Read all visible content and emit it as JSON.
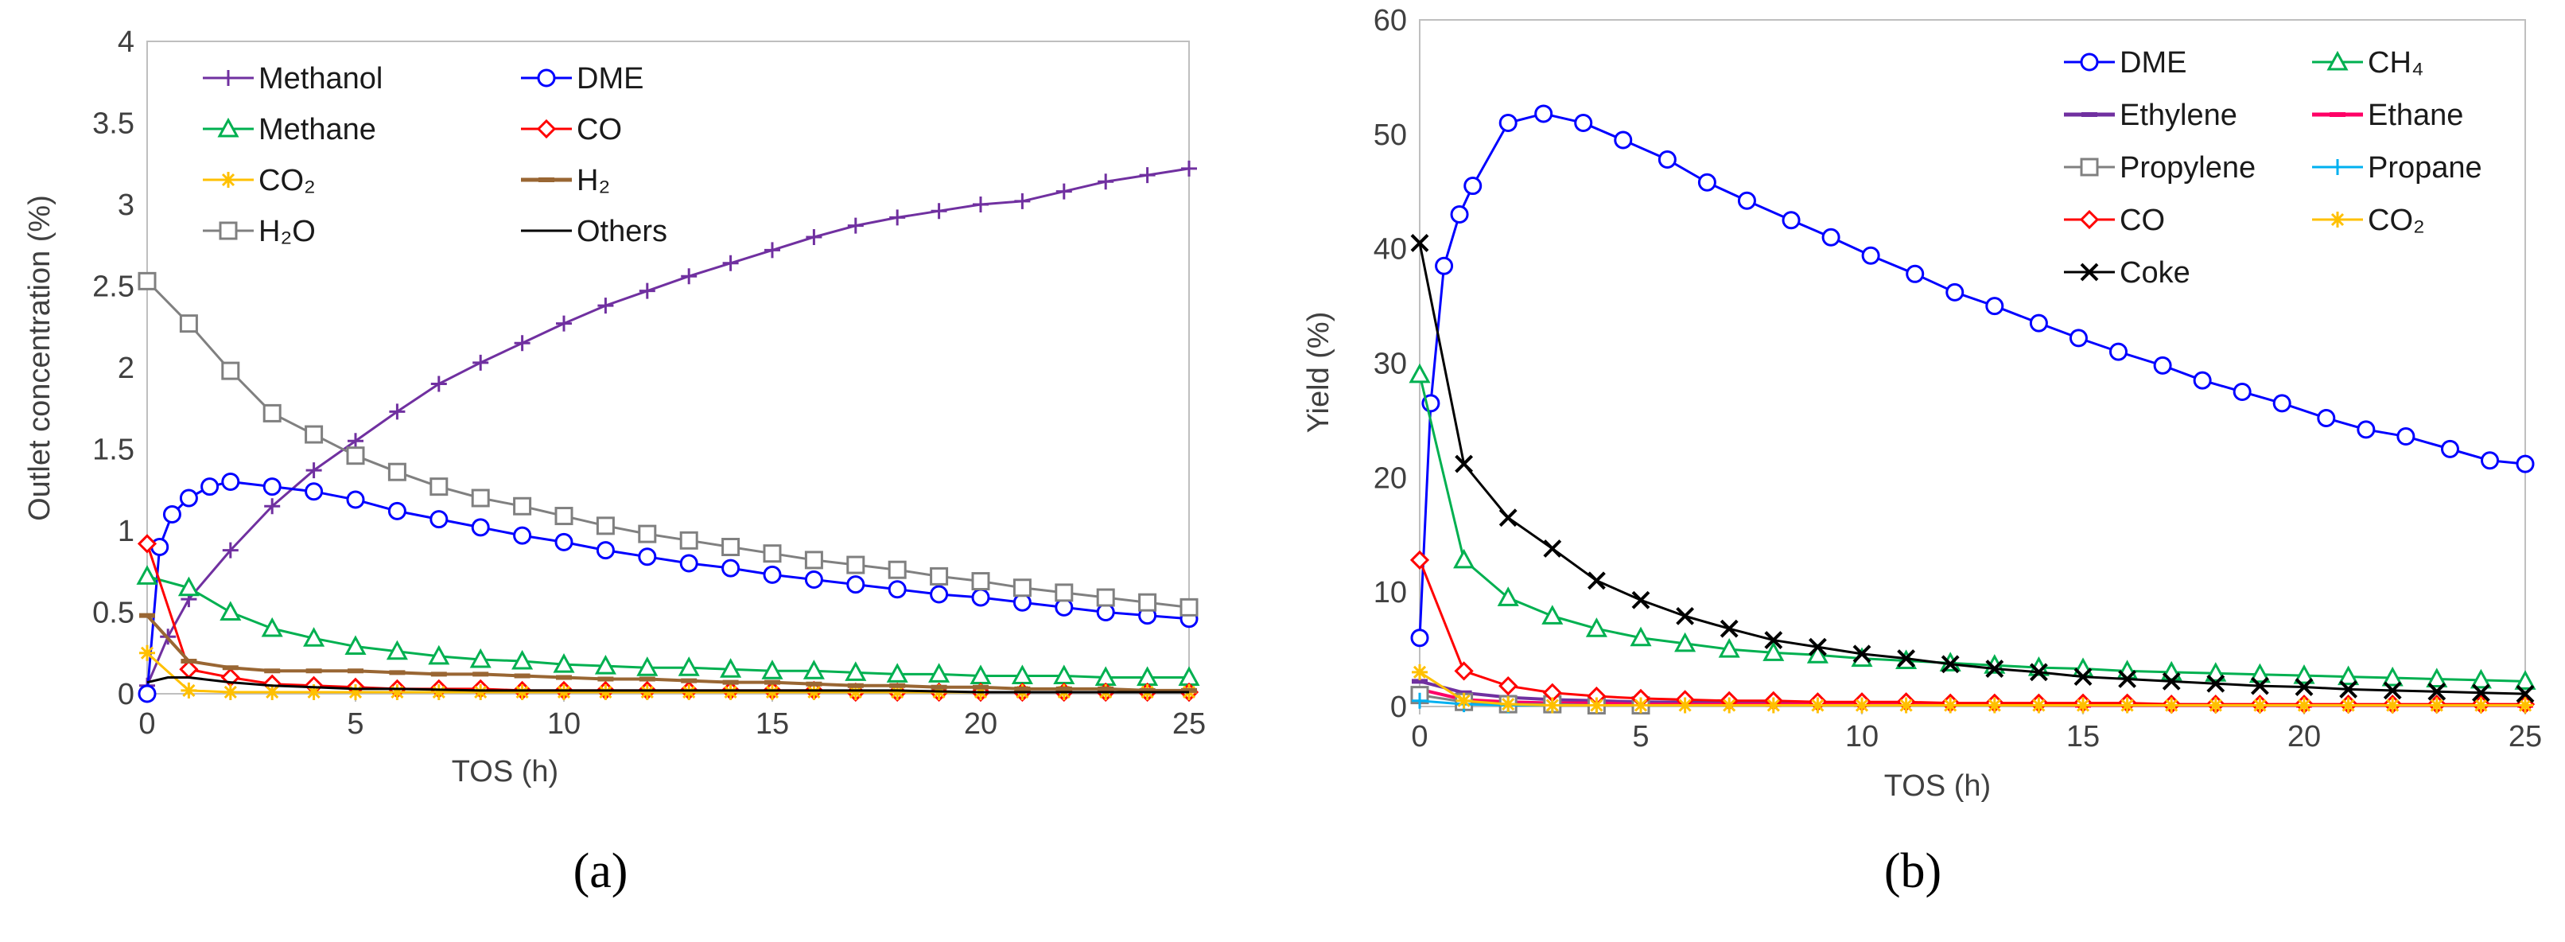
{
  "chart_data": [
    {
      "type": "line",
      "panel": "(a)",
      "xlabel": "TOS (h)",
      "ylabel": "Outlet concentration (%)",
      "xlim": [
        0,
        25
      ],
      "ylim": [
        0,
        4
      ],
      "xticks": [
        "0",
        "5",
        "10",
        "15",
        "20",
        "25"
      ],
      "yticks": [
        "0",
        "0.5",
        "1",
        "1.5",
        "2",
        "2.5",
        "3",
        "3.5",
        "4"
      ],
      "legend_position": "top-left",
      "legend_columns": 2,
      "series": [
        {
          "name": "Methanol",
          "color": "#7030A0",
          "marker": "plus",
          "x": [
            0,
            0.5,
            1,
            2,
            3,
            4,
            5,
            6,
            7,
            8,
            9,
            10,
            11,
            12,
            13,
            14,
            15,
            16,
            17,
            18,
            19,
            20,
            21,
            22,
            23,
            24,
            25
          ],
          "y": [
            0.05,
            0.35,
            0.58,
            0.88,
            1.15,
            1.37,
            1.55,
            1.73,
            1.9,
            2.03,
            2.15,
            2.27,
            2.38,
            2.47,
            2.56,
            2.64,
            2.72,
            2.8,
            2.87,
            2.92,
            2.96,
            3.0,
            3.02,
            3.08,
            3.14,
            3.18,
            3.22
          ]
        },
        {
          "name": "DME",
          "color": "#0000FF",
          "marker": "circle",
          "x": [
            0,
            0.3,
            0.6,
            1,
            1.5,
            2,
            3,
            4,
            5,
            6,
            7,
            8,
            9,
            10,
            11,
            12,
            13,
            14,
            15,
            16,
            17,
            18,
            19,
            20,
            21,
            22,
            23,
            24,
            25
          ],
          "y": [
            0.0,
            0.9,
            1.1,
            1.2,
            1.27,
            1.3,
            1.27,
            1.24,
            1.19,
            1.12,
            1.07,
            1.02,
            0.97,
            0.93,
            0.88,
            0.84,
            0.8,
            0.77,
            0.73,
            0.7,
            0.67,
            0.64,
            0.61,
            0.59,
            0.56,
            0.53,
            0.5,
            0.48,
            0.46
          ]
        },
        {
          "name": "Methane",
          "color": "#00B050",
          "marker": "triangle",
          "x": [
            0,
            1,
            2,
            3,
            4,
            5,
            6,
            7,
            8,
            9,
            10,
            11,
            12,
            13,
            14,
            15,
            16,
            17,
            18,
            19,
            20,
            21,
            22,
            23,
            24,
            25
          ],
          "y": [
            0.72,
            0.65,
            0.5,
            0.4,
            0.34,
            0.29,
            0.26,
            0.23,
            0.21,
            0.2,
            0.18,
            0.17,
            0.16,
            0.16,
            0.15,
            0.14,
            0.14,
            0.13,
            0.12,
            0.12,
            0.11,
            0.11,
            0.11,
            0.1,
            0.1,
            0.1
          ]
        },
        {
          "name": "CO",
          "color": "#FF0000",
          "marker": "diamond",
          "x": [
            0,
            1,
            2,
            3,
            4,
            5,
            6,
            7,
            8,
            9,
            10,
            11,
            12,
            13,
            14,
            15,
            16,
            17,
            18,
            19,
            20,
            21,
            22,
            23,
            24,
            25
          ],
          "y": [
            0.92,
            0.15,
            0.1,
            0.06,
            0.05,
            0.04,
            0.03,
            0.03,
            0.03,
            0.02,
            0.02,
            0.02,
            0.02,
            0.02,
            0.02,
            0.02,
            0.02,
            0.01,
            0.01,
            0.01,
            0.01,
            0.01,
            0.01,
            0.01,
            0.01,
            0.01
          ]
        },
        {
          "name": "CO₂",
          "color": "#FFC000",
          "marker": "asterisk",
          "x": [
            0,
            1,
            2,
            3,
            4,
            5,
            6,
            7,
            8,
            9,
            10,
            11,
            12,
            13,
            14,
            15,
            16,
            17,
            18,
            19,
            20,
            21,
            22,
            23,
            24,
            25
          ],
          "y": [
            0.25,
            0.02,
            0.01,
            0.01,
            0.01,
            0.01,
            0.01,
            0.01,
            0.01,
            0.01,
            0.01,
            0.01,
            0.01,
            0.01,
            0.01,
            0.01,
            0.01,
            0.01,
            0.01,
            0.01,
            0.01,
            0.01,
            0.01,
            0.01,
            0.01,
            0.01
          ]
        },
        {
          "name": "H₂",
          "color": "#996633",
          "marker": "dash",
          "x": [
            0,
            1,
            2,
            3,
            4,
            5,
            6,
            7,
            8,
            9,
            10,
            11,
            12,
            13,
            14,
            15,
            16,
            17,
            18,
            19,
            20,
            21,
            22,
            23,
            24,
            25
          ],
          "y": [
            0.48,
            0.2,
            0.16,
            0.14,
            0.14,
            0.14,
            0.13,
            0.12,
            0.12,
            0.11,
            0.1,
            0.09,
            0.09,
            0.08,
            0.07,
            0.07,
            0.06,
            0.05,
            0.05,
            0.04,
            0.04,
            0.03,
            0.03,
            0.03,
            0.02,
            0.02
          ]
        },
        {
          "name": "H₂O",
          "color": "#808080",
          "marker": "square",
          "x": [
            0,
            1,
            2,
            3,
            4,
            5,
            6,
            7,
            8,
            9,
            10,
            11,
            12,
            13,
            14,
            15,
            16,
            17,
            18,
            19,
            20,
            21,
            22,
            23,
            24,
            25
          ],
          "y": [
            2.53,
            2.27,
            1.98,
            1.72,
            1.59,
            1.46,
            1.36,
            1.27,
            1.2,
            1.15,
            1.09,
            1.03,
            0.98,
            0.94,
            0.9,
            0.86,
            0.82,
            0.79,
            0.76,
            0.72,
            0.69,
            0.65,
            0.62,
            0.59,
            0.56,
            0.53
          ]
        },
        {
          "name": "Others",
          "color": "#000000",
          "marker": "none",
          "x": [
            0,
            0.5,
            1,
            2,
            3,
            4,
            5,
            6,
            8,
            10,
            12,
            15,
            18,
            20,
            22,
            25
          ],
          "y": [
            0.07,
            0.1,
            0.1,
            0.07,
            0.05,
            0.04,
            0.03,
            0.03,
            0.02,
            0.02,
            0.02,
            0.02,
            0.02,
            0.01,
            0.01,
            0.01
          ]
        }
      ]
    },
    {
      "type": "line",
      "panel": "(b)",
      "xlabel": "TOS (h)",
      "ylabel": "Yield (%)",
      "xlim": [
        0,
        25
      ],
      "ylim": [
        0,
        60
      ],
      "xticks": [
        "0",
        "5",
        "10",
        "15",
        "20",
        "25"
      ],
      "yticks": [
        "0",
        "10",
        "20",
        "30",
        "40",
        "50",
        "60"
      ],
      "legend_position": "top-right",
      "legend_columns": 2,
      "series": [
        {
          "name": "DME",
          "color": "#0000FF",
          "marker": "circle",
          "x": [
            0,
            0.25,
            0.55,
            0.9,
            1.2,
            2,
            2.8,
            3.7,
            4.6,
            5.6,
            6.5,
            7.4,
            8.4,
            9.3,
            10.2,
            11.2,
            12.1,
            13.0,
            14.0,
            14.9,
            15.8,
            16.8,
            17.7,
            18.6,
            19.5,
            20.5,
            21.4,
            22.3,
            23.3,
            24.2,
            25
          ],
          "y": [
            6,
            26.5,
            38.5,
            43,
            45.5,
            51,
            51.8,
            51,
            49.5,
            47.8,
            45.8,
            44.2,
            42.5,
            41,
            39.4,
            37.8,
            36.2,
            35,
            33.5,
            32.2,
            31,
            29.8,
            28.5,
            27.5,
            26.5,
            25.2,
            24.2,
            23.6,
            22.5,
            21.5,
            21.2
          ]
        },
        {
          "name": "CH₄",
          "color": "#00B050",
          "marker": "triangle",
          "x": [
            0,
            1,
            2,
            3,
            4,
            5,
            6,
            7,
            8,
            9,
            10,
            11,
            12,
            13,
            14,
            15,
            16,
            17,
            18,
            19,
            20,
            21,
            22,
            23,
            24,
            25
          ],
          "y": [
            29,
            12.8,
            9.5,
            7.9,
            6.8,
            6,
            5.5,
            5,
            4.7,
            4.5,
            4.2,
            4,
            3.8,
            3.6,
            3.4,
            3.3,
            3.1,
            3,
            2.9,
            2.8,
            2.7,
            2.6,
            2.5,
            2.4,
            2.3,
            2.2
          ]
        },
        {
          "name": "Ethylene",
          "color": "#7030A0",
          "marker": "dash",
          "x": [
            0,
            1,
            2,
            3,
            4,
            5,
            8,
            10,
            15,
            20,
            25
          ],
          "y": [
            2.2,
            1.2,
            0.8,
            0.6,
            0.5,
            0.4,
            0.3,
            0.2,
            0.2,
            0.1,
            0.1
          ]
        },
        {
          "name": "Ethane",
          "color": "#FF0066",
          "marker": "dash",
          "x": [
            0,
            1,
            2,
            3,
            4,
            5,
            8,
            10,
            15,
            20,
            25
          ],
          "y": [
            1.5,
            0.6,
            0.4,
            0.3,
            0.3,
            0.2,
            0.2,
            0.2,
            0.1,
            0.1,
            0.1
          ]
        },
        {
          "name": "Propylene",
          "color": "#808080",
          "marker": "square",
          "x": [
            0,
            1,
            2,
            3,
            4,
            5
          ],
          "y": [
            1.0,
            0.4,
            0.2,
            0.2,
            0.1,
            0.1
          ]
        },
        {
          "name": "Propane",
          "color": "#00B0F0",
          "marker": "plus",
          "x": [
            0,
            1,
            2,
            3,
            4,
            5
          ],
          "y": [
            0.5,
            0.2,
            0.1,
            0.1,
            0.1,
            0.1
          ]
        },
        {
          "name": "CO",
          "color": "#FF0000",
          "marker": "diamond",
          "x": [
            0,
            1,
            2,
            3,
            4,
            5,
            6,
            7,
            8,
            9,
            10,
            11,
            12,
            13,
            14,
            15,
            16,
            17,
            18,
            19,
            20,
            21,
            22,
            23,
            24,
            25
          ],
          "y": [
            12.8,
            3.1,
            1.8,
            1.2,
            0.9,
            0.7,
            0.6,
            0.5,
            0.5,
            0.4,
            0.4,
            0.4,
            0.3,
            0.3,
            0.3,
            0.3,
            0.3,
            0.2,
            0.2,
            0.2,
            0.2,
            0.2,
            0.2,
            0.2,
            0.2,
            0.2
          ]
        },
        {
          "name": "CO₂",
          "color": "#FFC000",
          "marker": "asterisk",
          "x": [
            0,
            1,
            2,
            3,
            4,
            5,
            6,
            7,
            8,
            9,
            10,
            11,
            12,
            13,
            14,
            15,
            16,
            17,
            18,
            19,
            20,
            21,
            22,
            23,
            24,
            25
          ],
          "y": [
            3.0,
            0.5,
            0.2,
            0.1,
            0.1,
            0.1,
            0.1,
            0.1,
            0.1,
            0.1,
            0.1,
            0.1,
            0.1,
            0.1,
            0.1,
            0.1,
            0.1,
            0.1,
            0.1,
            0.1,
            0.1,
            0.1,
            0.1,
            0.1,
            0.1,
            0.1
          ]
        },
        {
          "name": "Coke",
          "color": "#000000",
          "marker": "x",
          "x": [
            0,
            1,
            2,
            3,
            4,
            5,
            6,
            7,
            8,
            9,
            10,
            11,
            12,
            13,
            14,
            15,
            16,
            17,
            18,
            19,
            20,
            21,
            22,
            23,
            24,
            25
          ],
          "y": [
            40.5,
            21.2,
            16.5,
            13.8,
            11,
            9.3,
            7.9,
            6.8,
            5.8,
            5.2,
            4.6,
            4.2,
            3.7,
            3.3,
            3,
            2.6,
            2.4,
            2.2,
            2,
            1.8,
            1.7,
            1.5,
            1.4,
            1.3,
            1.2,
            1.1
          ]
        }
      ]
    }
  ]
}
